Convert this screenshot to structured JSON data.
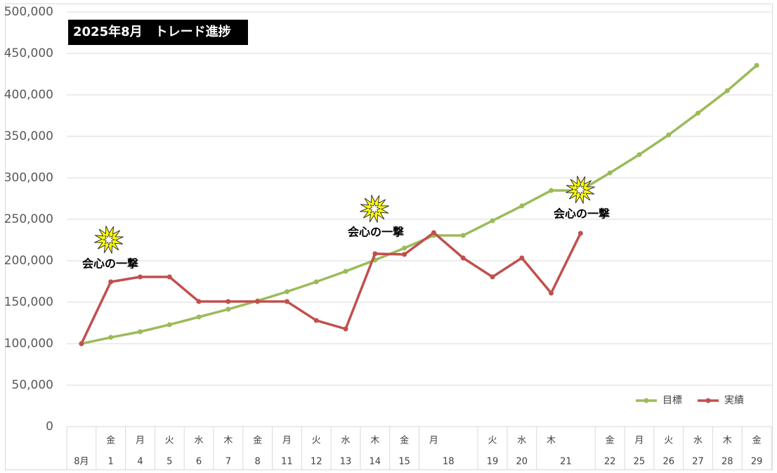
{
  "chart_data": {
    "type": "line",
    "title": "2025年8月　トレード進捗",
    "weekdays": [
      null,
      "金",
      "月",
      "火",
      "水",
      "木",
      "金",
      "月",
      "火",
      "水",
      "木",
      "金",
      "月",
      null,
      "火",
      "水",
      "木",
      null,
      "金",
      "月",
      "火",
      "水",
      "木",
      "金"
    ],
    "dates": [
      "8月",
      "1",
      "4",
      "5",
      "6",
      "7",
      "8",
      "11",
      "12",
      "13",
      "14",
      "15",
      "18",
      null,
      "19",
      "20",
      "21",
      null,
      "22",
      "25",
      "26",
      "27",
      "28",
      "29"
    ],
    "series": [
      {
        "name": "目標",
        "color": "#9bbb59",
        "values": [
          100000,
          107600,
          114400,
          122900,
          132200,
          141500,
          151700,
          162700,
          174600,
          187300,
          200800,
          215300,
          230500,
          230500,
          248300,
          266100,
          284700,
          284700,
          305900,
          328000,
          351700,
          378000,
          405100,
          435600
        ]
      },
      {
        "name": "実績",
        "color": "#c0504d",
        "values": [
          100000,
          174600,
          180500,
          180500,
          150800,
          150800,
          150800,
          150800,
          128000,
          117800,
          208500,
          207600,
          233900,
          203400,
          180500,
          203400,
          161000,
          233100,
          null,
          null,
          null,
          null,
          null,
          null
        ]
      }
    ],
    "annotations": [
      "会心の一撃",
      "会心の一撃",
      "会心の一撃"
    ],
    "ylim": [
      0,
      500000
    ],
    "yticks": [
      0,
      {
        "value": 50000,
        "label": "50,000"
      },
      {
        "value": 100000,
        "label": "100,000"
      },
      {
        "value": 150000,
        "label": "150,000"
      },
      {
        "value": 200000,
        "label": "200,000"
      },
      {
        "value": 250000,
        "label": "250,000"
      },
      {
        "value": 300000,
        "label": "300,000"
      },
      {
        "value": 350000,
        "label": "350,000"
      },
      {
        "value": 400000,
        "label": "400,000"
      },
      {
        "value": 450000,
        "label": "450,000"
      },
      {
        "value": 500000,
        "label": "500,000"
      }
    ],
    "grid": true,
    "legend": "lower right"
  }
}
